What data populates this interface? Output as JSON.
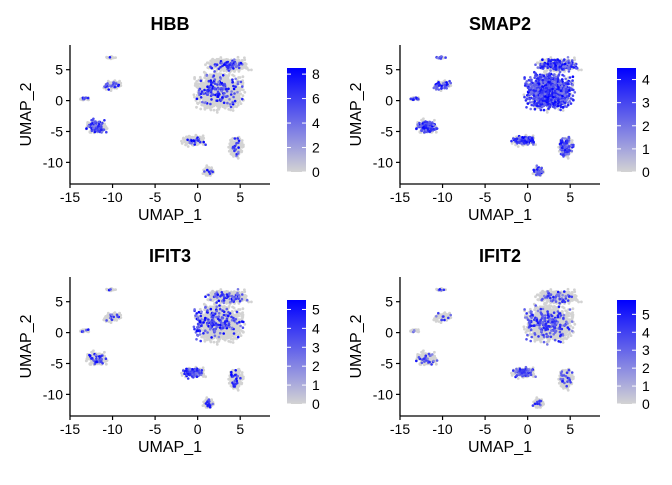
{
  "figure": {
    "type": "feature-plot-grid",
    "colors": {
      "low": "#d3d3d3",
      "high": "#0000ff",
      "axis": "#000000"
    }
  },
  "chart_data": [
    {
      "type": "scatter",
      "title": "HBB",
      "xlabel": "UMAP_1",
      "ylabel": "UMAP_2",
      "xlim": [
        -15,
        8.5
      ],
      "ylim": [
        -13.5,
        9
      ],
      "x_ticks": [
        "-15",
        "-10",
        "-5",
        "0",
        "5"
      ],
      "y_ticks": [
        "5",
        "0",
        "-5",
        "-10"
      ],
      "colorbar": {
        "min": 0,
        "max": 8.5,
        "ticks": [
          "8",
          "6",
          "4",
          "2",
          "0"
        ]
      },
      "expression_pattern": "sparse high values in left clusters and scattered main cluster"
    },
    {
      "type": "scatter",
      "title": "SMAP2",
      "xlabel": "UMAP_1",
      "ylabel": "UMAP_2",
      "xlim": [
        -15,
        8.5
      ],
      "ylim": [
        -13.5,
        9
      ],
      "x_ticks": [
        "-15",
        "-10",
        "-5",
        "0",
        "5"
      ],
      "y_ticks": [
        "5",
        "0",
        "-5",
        "-10"
      ],
      "colorbar": {
        "min": 0,
        "max": 4.5,
        "ticks": [
          "4",
          "3",
          "2",
          "1",
          "0"
        ]
      },
      "expression_pattern": "broad expression across main cluster"
    },
    {
      "type": "scatter",
      "title": "IFIT3",
      "xlabel": "UMAP_1",
      "ylabel": "UMAP_2",
      "xlim": [
        -15,
        8.5
      ],
      "ylim": [
        -13.5,
        9
      ],
      "x_ticks": [
        "-15",
        "-10",
        "-5",
        "0",
        "5"
      ],
      "y_ticks": [
        "5",
        "0",
        "-5",
        "-10"
      ],
      "colorbar": {
        "min": 0,
        "max": 5.5,
        "ticks": [
          "5",
          "4",
          "3",
          "2",
          "1",
          "0"
        ]
      },
      "expression_pattern": "concentrated on left side of main cluster"
    },
    {
      "type": "scatter",
      "title": "IFIT2",
      "xlabel": "UMAP_1",
      "ylabel": "UMAP_2",
      "xlim": [
        -15,
        8.5
      ],
      "ylim": [
        -13.5,
        9
      ],
      "x_ticks": [
        "-15",
        "-10",
        "-5",
        "0",
        "5"
      ],
      "y_ticks": [
        "5",
        "0",
        "-5",
        "-10"
      ],
      "colorbar": {
        "min": 0,
        "max": 5.8,
        "ticks": [
          "5",
          "4",
          "3",
          "2",
          "1",
          "0"
        ]
      },
      "expression_pattern": "moderate scattered expression, left side of main cluster"
    }
  ]
}
